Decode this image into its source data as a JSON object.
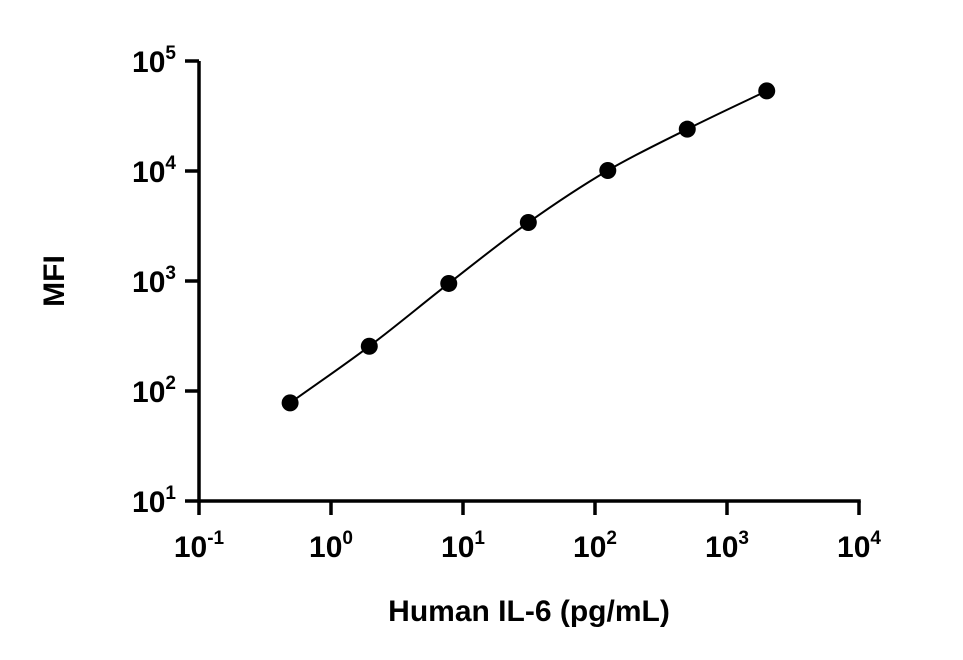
{
  "chart_data": {
    "type": "scatter",
    "title": "",
    "xlabel": "Human IL-6 (pg/mL)",
    "ylabel": "MFI",
    "x_scale": "log",
    "y_scale": "log",
    "xlim": [
      0.1,
      10000
    ],
    "ylim": [
      10,
      100000
    ],
    "grid": false,
    "legend": "none",
    "x_ticks": [
      {
        "value": 0.1,
        "base": "10",
        "exp": "-1"
      },
      {
        "value": 1,
        "base": "10",
        "exp": "0"
      },
      {
        "value": 10,
        "base": "10",
        "exp": "1"
      },
      {
        "value": 100,
        "base": "10",
        "exp": "2"
      },
      {
        "value": 1000,
        "base": "10",
        "exp": "3"
      },
      {
        "value": 10000,
        "base": "10",
        "exp": "4"
      }
    ],
    "y_ticks": [
      {
        "value": 10,
        "base": "10",
        "exp": "1"
      },
      {
        "value": 100,
        "base": "10",
        "exp": "2"
      },
      {
        "value": 1000,
        "base": "10",
        "exp": "3"
      },
      {
        "value": 10000,
        "base": "10",
        "exp": "4"
      },
      {
        "value": 100000,
        "base": "10",
        "exp": "5"
      }
    ],
    "series": [
      {
        "x": [
          0.49,
          1.95,
          7.8,
          31.25,
          125,
          500,
          2000
        ],
        "y": [
          78,
          255,
          950,
          3400,
          10100,
          24000,
          53500
        ],
        "marker": "circle",
        "fit_curve": "4PL"
      }
    ],
    "colors": {
      "marker": "#000000",
      "line": "#000000",
      "axis": "#000000"
    }
  }
}
